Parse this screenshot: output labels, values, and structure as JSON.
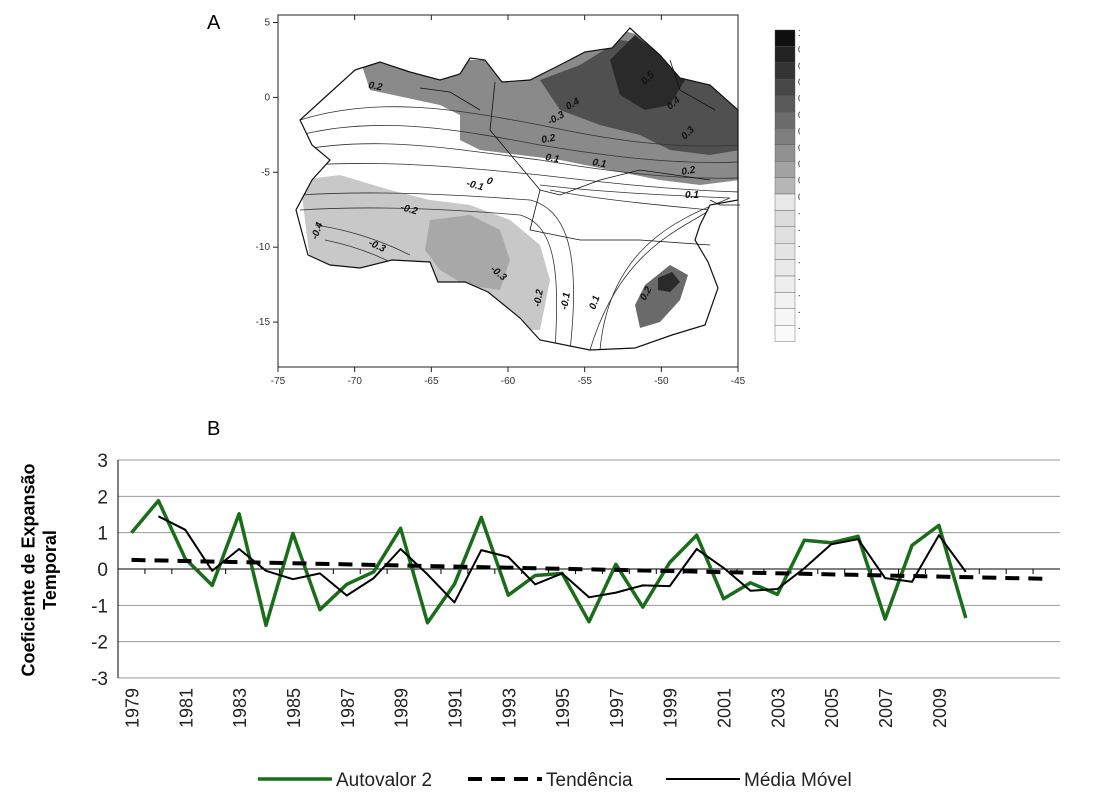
{
  "panel_a_label": "A",
  "panel_b_label": "B",
  "colors": {
    "autovalor": "#1a6e1a",
    "tendencia": "#000000",
    "media_movel": "#000000",
    "grid": "#9a9a9a"
  },
  "chart_data": [
    {
      "type": "heatmap",
      "panel": "A",
      "x_ticks": [
        "-75",
        "-70",
        "-65",
        "-60",
        "-55",
        "-50",
        "-45"
      ],
      "y_ticks": [
        "5",
        "0",
        "-5",
        "-10",
        "-15"
      ],
      "xlim": [
        -75,
        -45
      ],
      "ylim": [
        -18,
        5.5
      ],
      "colorbar_ticks": [
        "1",
        "0.9",
        "0.8",
        "0.7",
        "0.6",
        "0.5",
        "0.4",
        "0.3",
        "0.2",
        "0.1",
        "0",
        "-0.1",
        "-0.2",
        "-0.3",
        "-0.4",
        "-0.5",
        "-0.6",
        "-0.7",
        "-0.8"
      ],
      "contour_labels": [
        "0.2",
        "-0.3",
        "0.4",
        "0.5",
        "0.4",
        "0.3",
        "0.2",
        "0.1",
        "0.1",
        "0",
        "-0.1",
        "-0.2",
        "-0.4",
        "-0.3",
        "-0.3",
        "-0.2",
        "-0.1",
        "0.1",
        "0.2",
        "0.2",
        "0.1"
      ]
    },
    {
      "type": "line",
      "panel": "B",
      "ylabel": "Coeficiente de Expansão Temporal",
      "xlabel": "",
      "ylim": [
        -3,
        3
      ],
      "y_ticks": [
        "3",
        "2",
        "1",
        "0",
        "-1",
        "-2",
        "-3"
      ],
      "x": [
        1979,
        1980,
        1981,
        1982,
        1983,
        1984,
        1985,
        1986,
        1987,
        1988,
        1989,
        1990,
        1991,
        1992,
        1993,
        1994,
        1995,
        1996,
        1997,
        1998,
        1999,
        2000,
        2001,
        2002,
        2003,
        2004,
        2005,
        2006,
        2007,
        2008,
        2009,
        2010,
        2011,
        2012,
        2013
      ],
      "x_tick_labels": [
        "1979",
        "1981",
        "1983",
        "1985",
        "1987",
        "1989",
        "1991",
        "1993",
        "1995",
        "1997",
        "1999",
        "2001",
        "2003",
        "2005",
        "2007",
        "2009"
      ],
      "grid": true,
      "legend_position": "bottom",
      "series": [
        {
          "name": "Autovalor 2",
          "x": [
            1979,
            1980,
            1981,
            1982,
            1983,
            1984,
            1985,
            1986,
            1987,
            1988,
            1989,
            1990,
            1991,
            1992,
            1993,
            1994,
            1995,
            1996,
            1997,
            1998,
            1999,
            2000,
            2001,
            2002,
            2003,
            2004,
            2005,
            2006,
            2007,
            2008,
            2009,
            2010
          ],
          "values": [
            1.0,
            1.88,
            0.28,
            -0.45,
            1.52,
            -1.55,
            0.98,
            -1.12,
            -0.42,
            -0.08,
            1.12,
            -1.48,
            -0.42,
            1.42,
            -0.72,
            -0.18,
            -0.12,
            -1.45,
            0.13,
            -1.05,
            0.18,
            0.93,
            -0.82,
            -0.38,
            -0.7,
            0.79,
            0.72,
            0.9,
            -1.38,
            0.65,
            1.2,
            -1.35
          ]
        },
        {
          "name": "Tendência",
          "x": [
            1979,
            2013
          ],
          "values": [
            0.25,
            -0.27
          ]
        },
        {
          "name": "Média Móvel",
          "x": [
            1980,
            1981,
            1982,
            1983,
            1984,
            1985,
            1986,
            1987,
            1988,
            1989,
            1990,
            1991,
            1992,
            1993,
            1994,
            1995,
            1996,
            1997,
            1998,
            1999,
            2000,
            2001,
            2002,
            2003,
            2004,
            2005,
            2006,
            2007,
            2008,
            2009,
            2010
          ],
          "values": [
            1.45,
            1.08,
            -0.05,
            0.55,
            -0.05,
            -0.28,
            -0.12,
            -0.73,
            -0.25,
            0.55,
            -0.15,
            -0.92,
            0.52,
            0.33,
            -0.42,
            -0.12,
            -0.78,
            -0.65,
            -0.45,
            -0.47,
            0.55,
            0.03,
            -0.6,
            -0.55,
            0.02,
            0.68,
            0.82,
            -0.25,
            -0.35,
            0.93,
            -0.08
          ]
        }
      ]
    }
  ]
}
